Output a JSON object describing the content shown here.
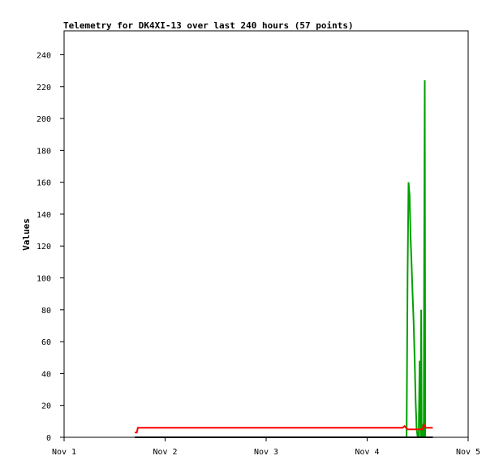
{
  "chart_data": {
    "type": "line",
    "title": "Telemetry for DK4XI-13 over last 240 hours (57 points)",
    "xlabel": "",
    "ylabel": "Values",
    "x_ticks": [
      "Nov 1",
      "Nov 2",
      "Nov 3",
      "Nov 4",
      "Nov 5"
    ],
    "y_ticks": [
      0,
      20,
      40,
      60,
      80,
      100,
      120,
      140,
      160,
      180,
      200,
      220,
      240
    ],
    "xlim": [
      0,
      4
    ],
    "ylim": [
      0,
      255
    ],
    "grid": false,
    "legend": "none",
    "series": [
      {
        "color": "#00a000",
        "x": [
          3.39,
          3.4,
          3.41,
          3.42,
          3.43,
          3.44,
          3.45,
          3.46,
          3.47,
          3.48,
          3.49,
          3.5,
          3.51,
          3.52,
          3.53,
          3.535,
          3.54,
          3.545,
          3.55,
          3.555,
          3.56,
          3.565,
          3.57,
          3.575,
          3.58,
          3.585,
          3.59
        ],
        "values": [
          0,
          100,
          160,
          152,
          126,
          108,
          90,
          72,
          50,
          22,
          5,
          0,
          0,
          48,
          0,
          80,
          0,
          8,
          0,
          4,
          0,
          112,
          224,
          0,
          0,
          0,
          0
        ]
      },
      {
        "color": "#ff0000",
        "x": [
          0.7,
          0.72,
          0.73,
          1.0,
          2.0,
          3.0,
          3.35,
          3.37,
          3.4,
          3.45,
          3.5,
          3.52,
          3.55,
          3.56,
          3.58,
          3.6,
          3.65
        ],
        "values": [
          3,
          3,
          6,
          6,
          6,
          6,
          6,
          7,
          5,
          5,
          5,
          5,
          5,
          8,
          6,
          6,
          6
        ]
      },
      {
        "color": "#000000",
        "x": [
          0.7,
          3.65
        ],
        "values": [
          0,
          0
        ]
      }
    ]
  }
}
